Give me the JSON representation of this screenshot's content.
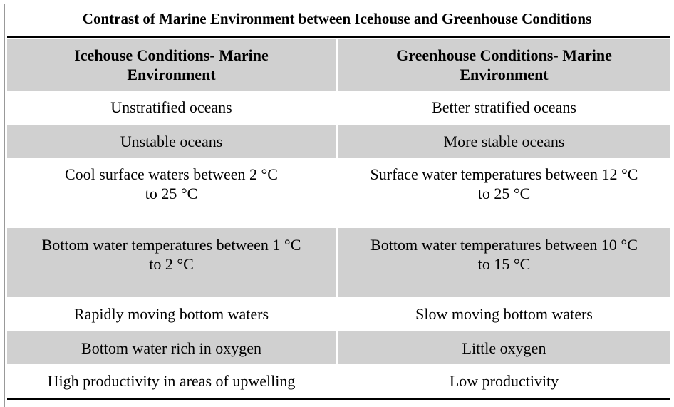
{
  "title": "Contrast of Marine Environment between Icehouse and Greenhouse Conditions",
  "table": {
    "header": [
      "Icehouse Conditions- Marine\nEnvironment",
      "Greenhouse Conditions- Marine\nEnvironment"
    ],
    "rows": [
      [
        "Unstratified oceans",
        "Better stratified oceans"
      ],
      [
        "Unstable oceans",
        "More stable oceans"
      ],
      [
        "Cool surface waters between 2 °C\nto 25 °C",
        "Surface water temperatures between 12 °C\nto 25 °C"
      ],
      [
        "Bottom water temperatures between 1 °C\nto 2 °C",
        "Bottom water temperatures between 10 °C\nto 15 °C"
      ],
      [
        "Rapidly moving bottom waters",
        "Slow moving bottom waters"
      ],
      [
        "Bottom water rich in oxygen",
        "Little oxygen"
      ],
      [
        "High productivity in areas of upwelling",
        "Low productivity"
      ]
    ]
  }
}
